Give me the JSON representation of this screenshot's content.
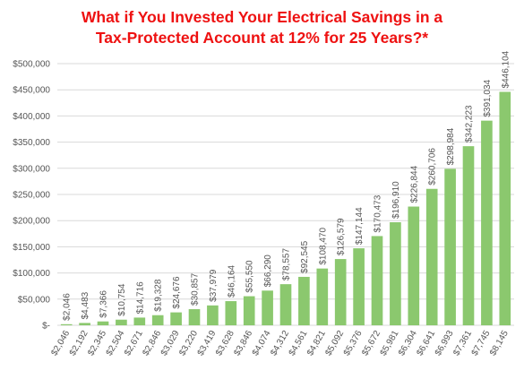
{
  "chart_data": {
    "type": "bar",
    "title_lines": [
      "What if You Invested Your Electrical Savings in a",
      "Tax-Protected Account at 12% for 25 Years?*"
    ],
    "xlabel": "",
    "ylabel": "",
    "categories": [
      "$2,046",
      "$2,192",
      "$2,345",
      "$2,504",
      "$2,671",
      "$2,846",
      "$3,029",
      "$3,220",
      "$3,419",
      "$3,628",
      "$3,846",
      "$4,074",
      "$4,312",
      "$4,561",
      "$4,821",
      "$5,092",
      "$5,376",
      "$5,672",
      "$5,981",
      "$6,304",
      "$6,641",
      "$6,993",
      "$7,361",
      "$7,745",
      "$8,145"
    ],
    "values": [
      2046,
      4483,
      7366,
      10754,
      14716,
      19328,
      24676,
      30857,
      37979,
      46164,
      55550,
      66290,
      78557,
      92545,
      108470,
      126579,
      147144,
      170473,
      196910,
      226844,
      260706,
      298984,
      342223,
      391034,
      446104
    ],
    "data_labels": [
      "$2,046",
      "$4,483",
      "$7,366",
      "$10,754",
      "$14,716",
      "$19,328",
      "$24,676",
      "$30,857",
      "$37,979",
      "$46,164",
      "$55,550",
      "$66,290",
      "$78,557",
      "$92,545",
      "$108,470",
      "$126,579",
      "$147,144",
      "$170,473",
      "$196,910",
      "$226,844",
      "$260,706",
      "$298,984",
      "$342,223",
      "$391,034",
      "$446,104"
    ],
    "ylim": [
      0,
      500000
    ],
    "yticks": [
      0,
      50000,
      100000,
      150000,
      200000,
      250000,
      300000,
      350000,
      400000,
      450000,
      500000
    ],
    "ytick_labels": [
      "$-",
      "$50,000",
      "$100,000",
      "$150,000",
      "$200,000",
      "$250,000",
      "$300,000",
      "$350,000",
      "$400,000",
      "$450,000",
      "$500,000"
    ],
    "grid": true,
    "legend": "none",
    "bar_color": "#8bc86e",
    "grid_color": "#d9d9d9",
    "title_color": "#ee1111"
  }
}
